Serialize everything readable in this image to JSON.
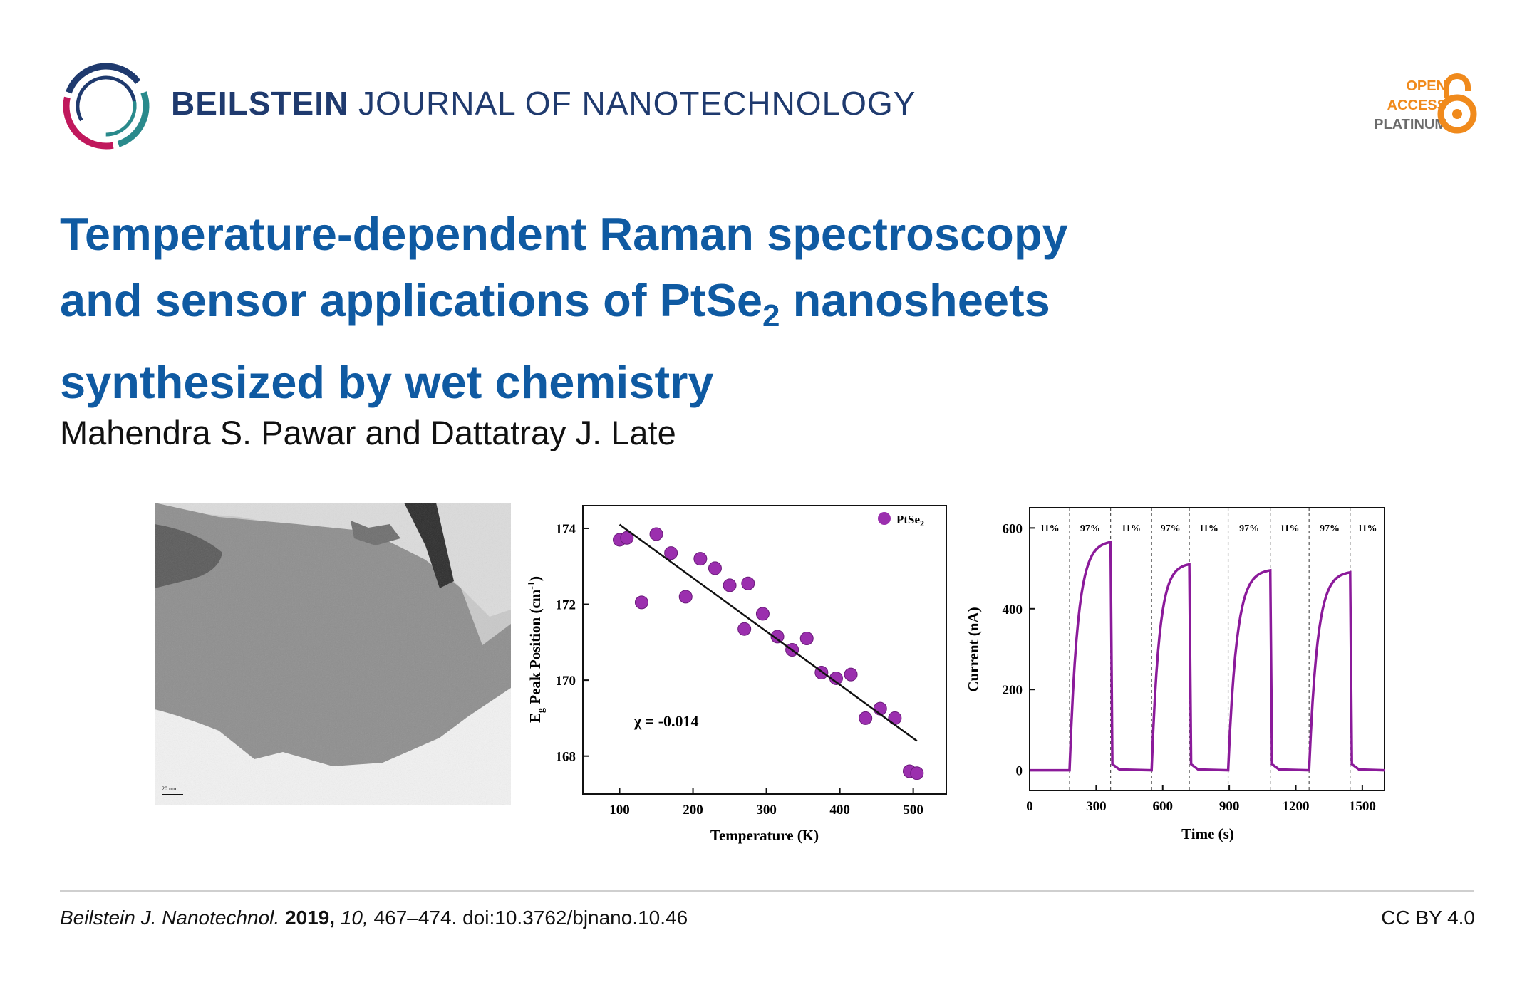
{
  "header": {
    "journal_bold": "BEILSTEIN",
    "journal_rest": "JOURNAL OF NANOTECHNOLOGY",
    "oa_badge": [
      "OPEN",
      "ACCESS",
      "PLATINUM"
    ],
    "colors": {
      "navy": "#1f3a6e",
      "magenta": "#c0185c",
      "teal": "#2a8a8c",
      "orange": "#f08a1c",
      "gray": "#6b6b6b"
    }
  },
  "article": {
    "title_line1": "Temperature-dependent Raman spectroscopy",
    "title_line2_pre": "and sensor applications of PtSe",
    "title_line2_sub": "2",
    "title_line2_post": " nanosheets",
    "title_line3": "synthesized by wet chemistry",
    "authors": "Mahendra S. Pawar and Dattatray J. Late"
  },
  "figures": {
    "tem": {
      "scale_bar": "20 nm"
    },
    "raman": {
      "slope_label": "χ = -0.014"
    }
  },
  "chart_data": [
    {
      "type": "scatter",
      "xlabel": "Temperature (K)",
      "ylabel_main": "E",
      "ylabel_sub": "g",
      "ylabel_rest": " Peak Position (cm",
      "ylabel_sup": "-1",
      "ylabel_end": ")",
      "legend_main": "PtSe",
      "legend_sub": "2",
      "xlim": [
        50,
        545
      ],
      "ylim": [
        167.0,
        174.6
      ],
      "xticks": [
        100,
        200,
        300,
        400,
        500
      ],
      "yticks": [
        168,
        170,
        172,
        174
      ],
      "series": [
        {
          "x": [
            100,
            110,
            130,
            150,
            170,
            190,
            210,
            230,
            250,
            270,
            275,
            295,
            315,
            335,
            355,
            375,
            395,
            415,
            435,
            455,
            475,
            495,
            505
          ],
          "y": [
            173.7,
            173.75,
            172.05,
            173.85,
            173.35,
            172.2,
            173.2,
            172.95,
            172.5,
            171.35,
            172.55,
            171.75,
            171.15,
            170.8,
            171.1,
            170.2,
            170.05,
            170.15,
            169.0,
            169.25,
            169.0,
            167.6,
            167.55
          ]
        }
      ],
      "fit_line": {
        "x": [
          100,
          505
        ],
        "y": [
          174.1,
          168.4
        ]
      },
      "legend_position": "top-right"
    },
    {
      "type": "line",
      "xlabel": "Time (s)",
      "ylabel": "Current (nA)",
      "xlim": [
        0,
        1600
      ],
      "ylim": [
        -50,
        650
      ],
      "xticks": [
        0,
        300,
        600,
        900,
        1200,
        1500
      ],
      "yticks": [
        0,
        200,
        400,
        600
      ],
      "pulses": [
        {
          "on": 180,
          "off": 365,
          "peak": 565
        },
        {
          "on": 550,
          "off": 720,
          "peak": 510
        },
        {
          "on": 895,
          "off": 1085,
          "peak": 495
        },
        {
          "on": 1260,
          "off": 1445,
          "peak": 490
        }
      ],
      "baseline": 0,
      "humidity_labels": [
        "11%",
        "97%",
        "11%",
        "97%",
        "11%",
        "97%",
        "11%",
        "97%",
        "11%"
      ],
      "line_color": "#8b1a9a"
    }
  ],
  "footer": {
    "journal_abbr": "Beilstein J. Nanotechnol.",
    "year": "2019,",
    "volume": "10,",
    "pages_doi": "467–474. doi:10.3762/bjnano.10.46",
    "license": "CC BY 4.0"
  }
}
